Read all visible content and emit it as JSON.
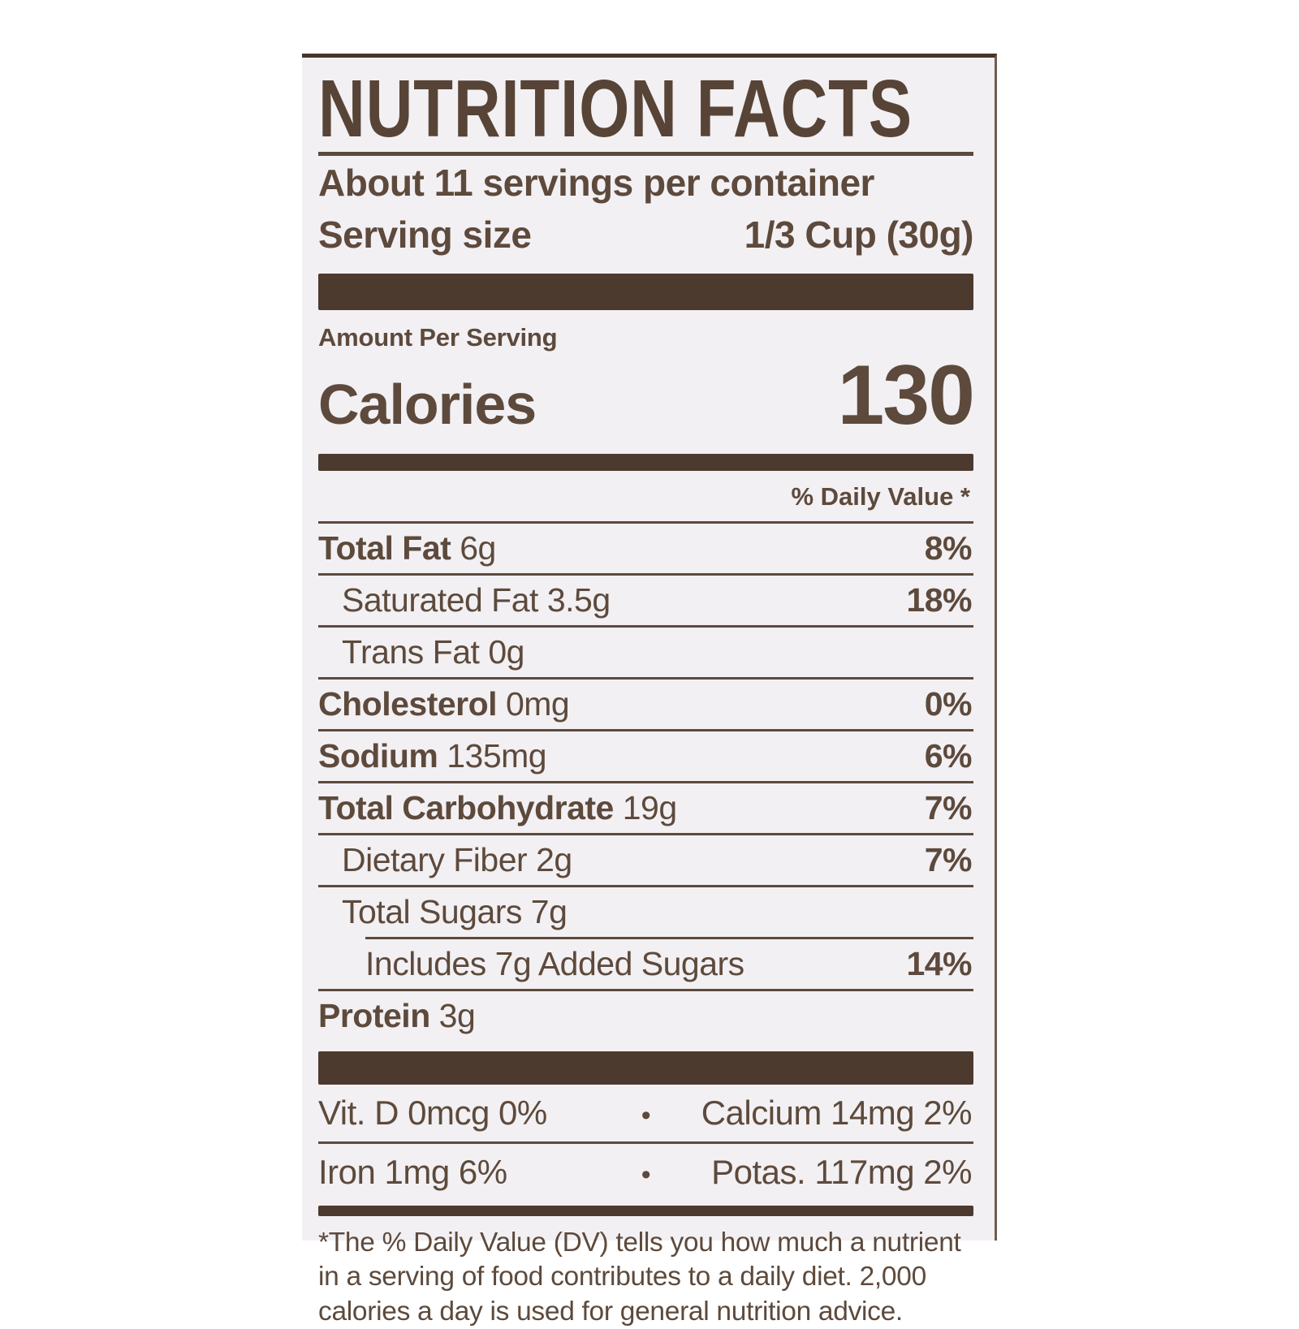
{
  "label": {
    "title": "NUTRITION FACTS",
    "servings_per_container": "About 11 servings per container",
    "serving_size_label": "Serving size",
    "serving_size_value": "1/3 Cup (30g)",
    "amount_per_serving": "Amount Per Serving",
    "calories_label": "Calories",
    "calories_value": "130",
    "daily_value_header": "% Daily Value *",
    "nutrients": [
      {
        "name": "Total Fat",
        "amount": "6g",
        "dv": "8%",
        "bold": true,
        "indent": 0
      },
      {
        "name": "Saturated Fat",
        "amount": "3.5g",
        "dv": "18%",
        "bold": false,
        "indent": 1
      },
      {
        "name": "Trans Fat",
        "amount": "0g",
        "dv": "",
        "bold": false,
        "indent": 1
      },
      {
        "name": "Cholesterol",
        "amount": "0mg",
        "dv": "0%",
        "bold": true,
        "indent": 0
      },
      {
        "name": "Sodium",
        "amount": "135mg",
        "dv": "6%",
        "bold": true,
        "indent": 0
      },
      {
        "name": "Total Carbohydrate",
        "amount": "19g",
        "dv": "7%",
        "bold": true,
        "indent": 0
      },
      {
        "name": "Dietary Fiber",
        "amount": "2g",
        "dv": "7%",
        "bold": false,
        "indent": 1
      },
      {
        "name": "Total Sugars",
        "amount": "7g",
        "dv": "",
        "bold": false,
        "indent": 1
      },
      {
        "name": "Includes 7g Added Sugars",
        "amount": "",
        "dv": "14%",
        "bold": false,
        "indent": 2
      },
      {
        "name": "Protein",
        "amount": "3g",
        "dv": "",
        "bold": true,
        "indent": 0
      }
    ],
    "micronutrients": [
      {
        "left": "Vit. D 0mcg 0%",
        "separator": "•",
        "right": "Calcium 14mg 2%"
      },
      {
        "left": "Iron 1mg 6%",
        "separator": "•",
        "right": "Potas. 117mg 2%"
      }
    ],
    "footnote": "*The % Daily Value (DV) tells you how much a nutrient in a serving of food contributes to a daily diet. 2,000 calories a day is used for general nutrition advice.",
    "colors": {
      "text_brown": "#5d4a3c",
      "bar_brown": "#4c3a2e",
      "label_background": "#f2f0f3",
      "page_background": "#ffffff"
    }
  }
}
